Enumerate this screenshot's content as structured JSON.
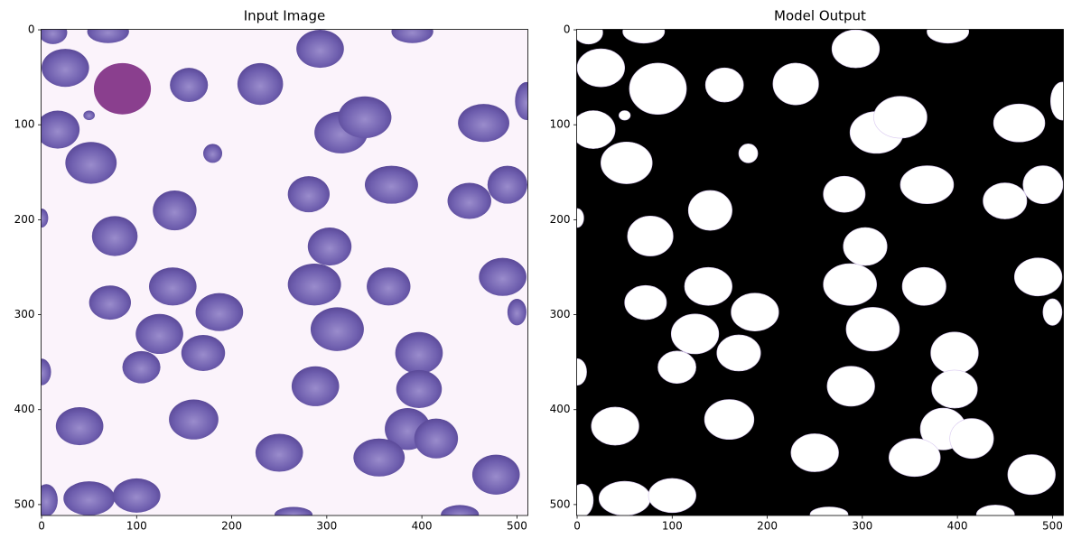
{
  "chart_data": [
    {
      "type": "image",
      "title": "Input Image",
      "xlim": [
        -0.5,
        511.5
      ],
      "ylim": [
        511.5,
        -0.5
      ],
      "xticks": [
        0,
        100,
        200,
        300,
        400,
        500
      ],
      "yticks": [
        0,
        100,
        200,
        300,
        400,
        500
      ]
    },
    {
      "type": "image",
      "title": "Model Output",
      "xlim": [
        -0.5,
        511.5
      ],
      "ylim": [
        511.5,
        -0.5
      ],
      "xticks": [
        0,
        100,
        200,
        300,
        400,
        500
      ],
      "yticks": [
        0,
        100,
        200,
        300,
        400,
        500
      ]
    }
  ]
}
